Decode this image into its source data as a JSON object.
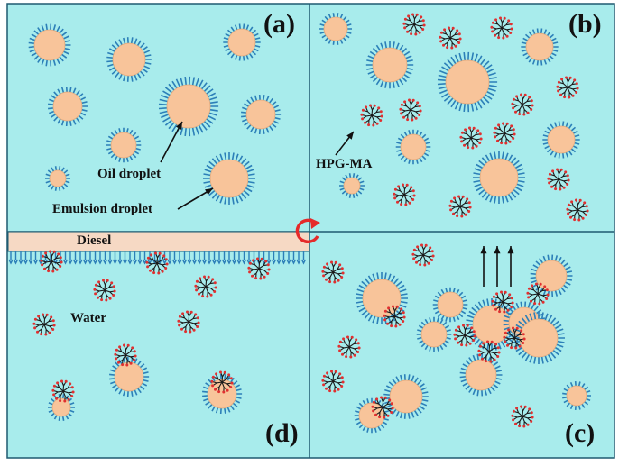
{
  "panels": {
    "a": "(a)",
    "b": "(b)",
    "c": "(c)",
    "d": "(d)"
  },
  "labels": {
    "oil_droplet": "Oil droplet",
    "emulsion_droplet": "Emulsion droplet",
    "hpg_ma": "HPG-MA",
    "diesel": "Diesel",
    "water": "Water"
  },
  "colors": {
    "background": "#a8ecec",
    "droplet_fill": "#f8c49a",
    "surfactant": "#2c7fb8",
    "polymer_branch": "#1a1a1a",
    "polymer_end": "#e03030",
    "diesel_layer": "#f6d9c4",
    "cycle_arrow": "#e52a2a"
  }
}
